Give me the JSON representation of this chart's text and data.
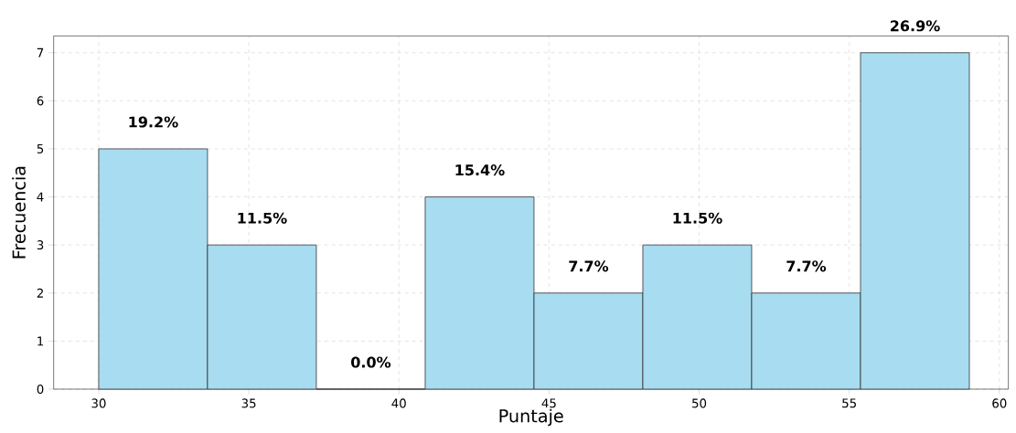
{
  "chart_data": {
    "type": "histogram",
    "xlabel": "Puntaje",
    "ylabel": "Frecuencia",
    "bins": [
      30,
      33.625,
      37.25,
      40.875,
      44.5,
      48.125,
      51.75,
      55.375,
      59
    ],
    "values": [
      5,
      3,
      0,
      4,
      2,
      3,
      2,
      7
    ],
    "annotations": [
      {
        "text": "19.2%",
        "x": 31.8125,
        "y": 5
      },
      {
        "text": "11.5%",
        "x": 35.4375,
        "y": 3
      },
      {
        "text": "0.0%",
        "x": 39.0625,
        "y": 0
      },
      {
        "text": "15.4%",
        "x": 42.6875,
        "y": 4
      },
      {
        "text": "7.7%",
        "x": 46.3125,
        "y": 2
      },
      {
        "text": "11.5%",
        "x": 49.9375,
        "y": 3
      },
      {
        "text": "7.7%",
        "x": 53.5625,
        "y": 2
      },
      {
        "text": "26.9%",
        "x": 57.1875,
        "y": 7
      }
    ],
    "color": "#a8dcf0",
    "xlim": [
      28.5,
      60.3
    ],
    "ylim": [
      0,
      7.35
    ],
    "xticks": [
      30,
      35,
      40,
      45,
      50,
      55,
      60
    ],
    "yticks": [
      0,
      1,
      2,
      3,
      4,
      5,
      6,
      7
    ],
    "grid": true
  }
}
